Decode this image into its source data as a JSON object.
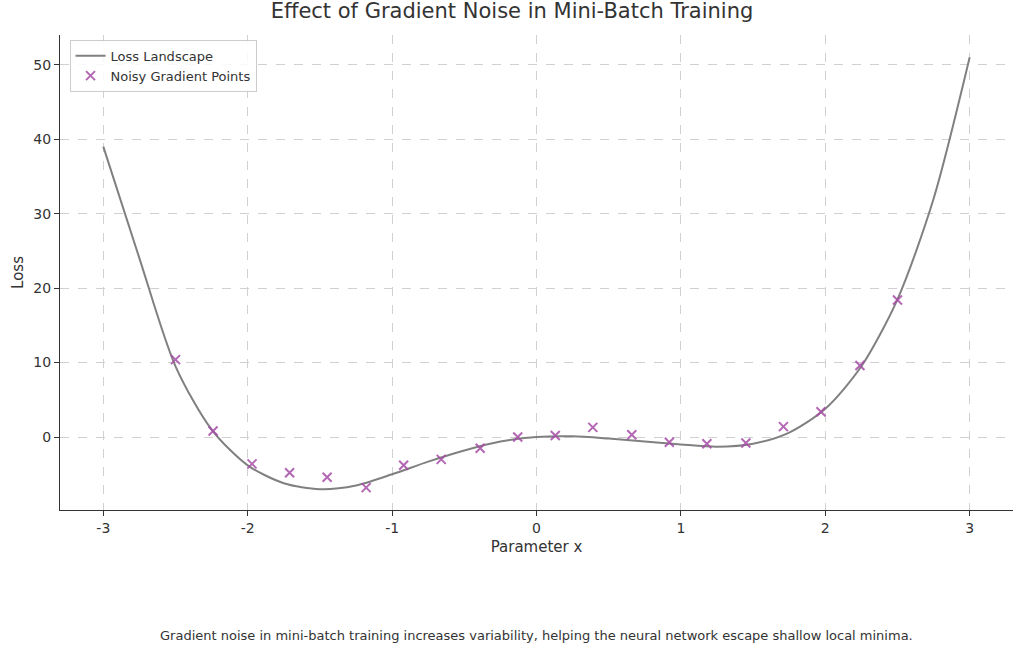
{
  "chart_data": {
    "type": "line",
    "title": "Effect of Gradient Noise in Mini-Batch Training",
    "x_label": "Parameter x",
    "y_label": "Loss",
    "caption": "Gradient noise in mini-batch training increases variability, helping the neural network escape shallow local minima.",
    "xlim": [
      -3.3,
      3.3
    ],
    "ylim": [
      -9.8,
      54
    ],
    "xticks": [
      -3,
      -2,
      -1,
      0,
      1,
      2,
      3
    ],
    "yticks": [
      0,
      10,
      20,
      30,
      40,
      50
    ],
    "grid": true,
    "legend": "upper left",
    "series": [
      {
        "name": "Loss Landscape",
        "type": "line",
        "color": "#808080",
        "line_style": "solid",
        "x": [
          -3,
          -2.75,
          -2.5,
          -2.25,
          -2,
          -1.75,
          -1.5,
          -1.25,
          -1,
          -0.75,
          -0.5,
          -0.25,
          0,
          0.25,
          0.5,
          0.75,
          1,
          1.25,
          1.5,
          1.75,
          2,
          2.25,
          2.5,
          2.75,
          3
        ],
        "values": [
          39,
          24,
          9.5,
          1,
          -3.8,
          -6.2,
          -7,
          -6.5,
          -5,
          -3.3,
          -1.8,
          -0.6,
          0,
          0.1,
          -0.2,
          -0.6,
          -1.0,
          -1.3,
          -0.9,
          0.6,
          3.8,
          9.5,
          18.5,
          32,
          51
        ]
      },
      {
        "name": "Noisy Gradient Points",
        "type": "scatter",
        "color": "#a64ca6",
        "marker": "x",
        "x": [
          -2.5,
          -2.24,
          -1.97,
          -1.71,
          -1.45,
          -1.18,
          -0.92,
          -0.66,
          -0.39,
          -0.13,
          0.13,
          0.39,
          0.66,
          0.92,
          1.18,
          1.45,
          1.71,
          1.97,
          2.24,
          2.5
        ],
        "values": [
          10.4,
          0.8,
          -3.6,
          -4.8,
          -5.4,
          -6.8,
          -3.8,
          -3.0,
          -1.5,
          0.0,
          0.2,
          1.3,
          0.3,
          -0.7,
          -0.9,
          -0.8,
          1.4,
          3.4,
          9.6,
          18.4
        ]
      }
    ]
  }
}
